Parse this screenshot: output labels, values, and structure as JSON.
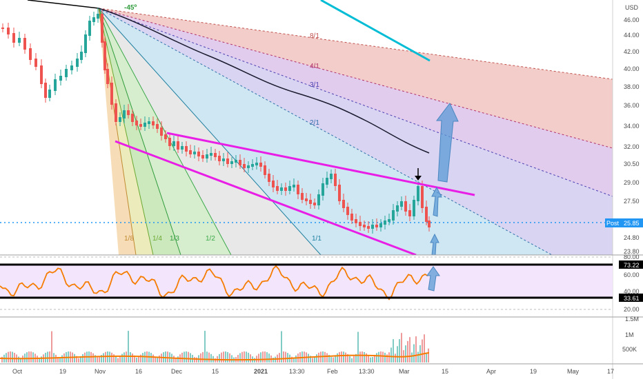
{
  "currency_label": "USD",
  "price_panel": {
    "y_ticks": [
      "46.00",
      "44.00",
      "42.00",
      "40.00",
      "38.00",
      "36.00",
      "34.00",
      "32.00",
      "30.50",
      "29.00",
      "27.50",
      "26.00",
      "24.80",
      "23.80"
    ],
    "current_price": "25.85",
    "post_label": "Post",
    "top_angle_label": "-45º",
    "fan_labels_right": [
      "8/1",
      "4/1",
      "3/1",
      "2/1"
    ],
    "fan_labels_bottom": [
      "1/8",
      "1/4",
      "1/3",
      "1/2",
      "1/1"
    ]
  },
  "rsi_panel": {
    "y_ticks": [
      "80.00",
      "60.00",
      "40.00",
      "20.00"
    ],
    "upper_level": "73.22",
    "lower_level": "33.61"
  },
  "volume_panel": {
    "y_ticks": [
      "1.5M",
      "1M",
      "500K"
    ]
  },
  "x_axis_labels": [
    "Oct",
    "19",
    "Nov",
    "16",
    "Dec",
    "15",
    "2021",
    "13:30",
    "Feb",
    "13:30",
    "Mar",
    "15",
    "Apr",
    "19",
    "May",
    "17"
  ],
  "colors": {
    "bull": "#26a69a",
    "bear": "#ef5350",
    "channel": "#e91ee6",
    "projection_arrow": "#5b9bd5",
    "teal_line": "#00bcd4",
    "rsi_line": "#f57c00",
    "rsi_bg": "#f3e5fb",
    "level_line": "#000000",
    "price_line": "#2196f3"
  },
  "chart_data": {
    "type": "candlestick",
    "price_axis_unit": "USD",
    "current_price": 25.85,
    "rsi_levels": [
      33.61,
      73.22
    ],
    "notes": [
      "8/1",
      "4/1",
      "3/1",
      "2/1",
      "1/1",
      "1/2",
      "1/3",
      "1/4",
      "1/8"
    ]
  }
}
